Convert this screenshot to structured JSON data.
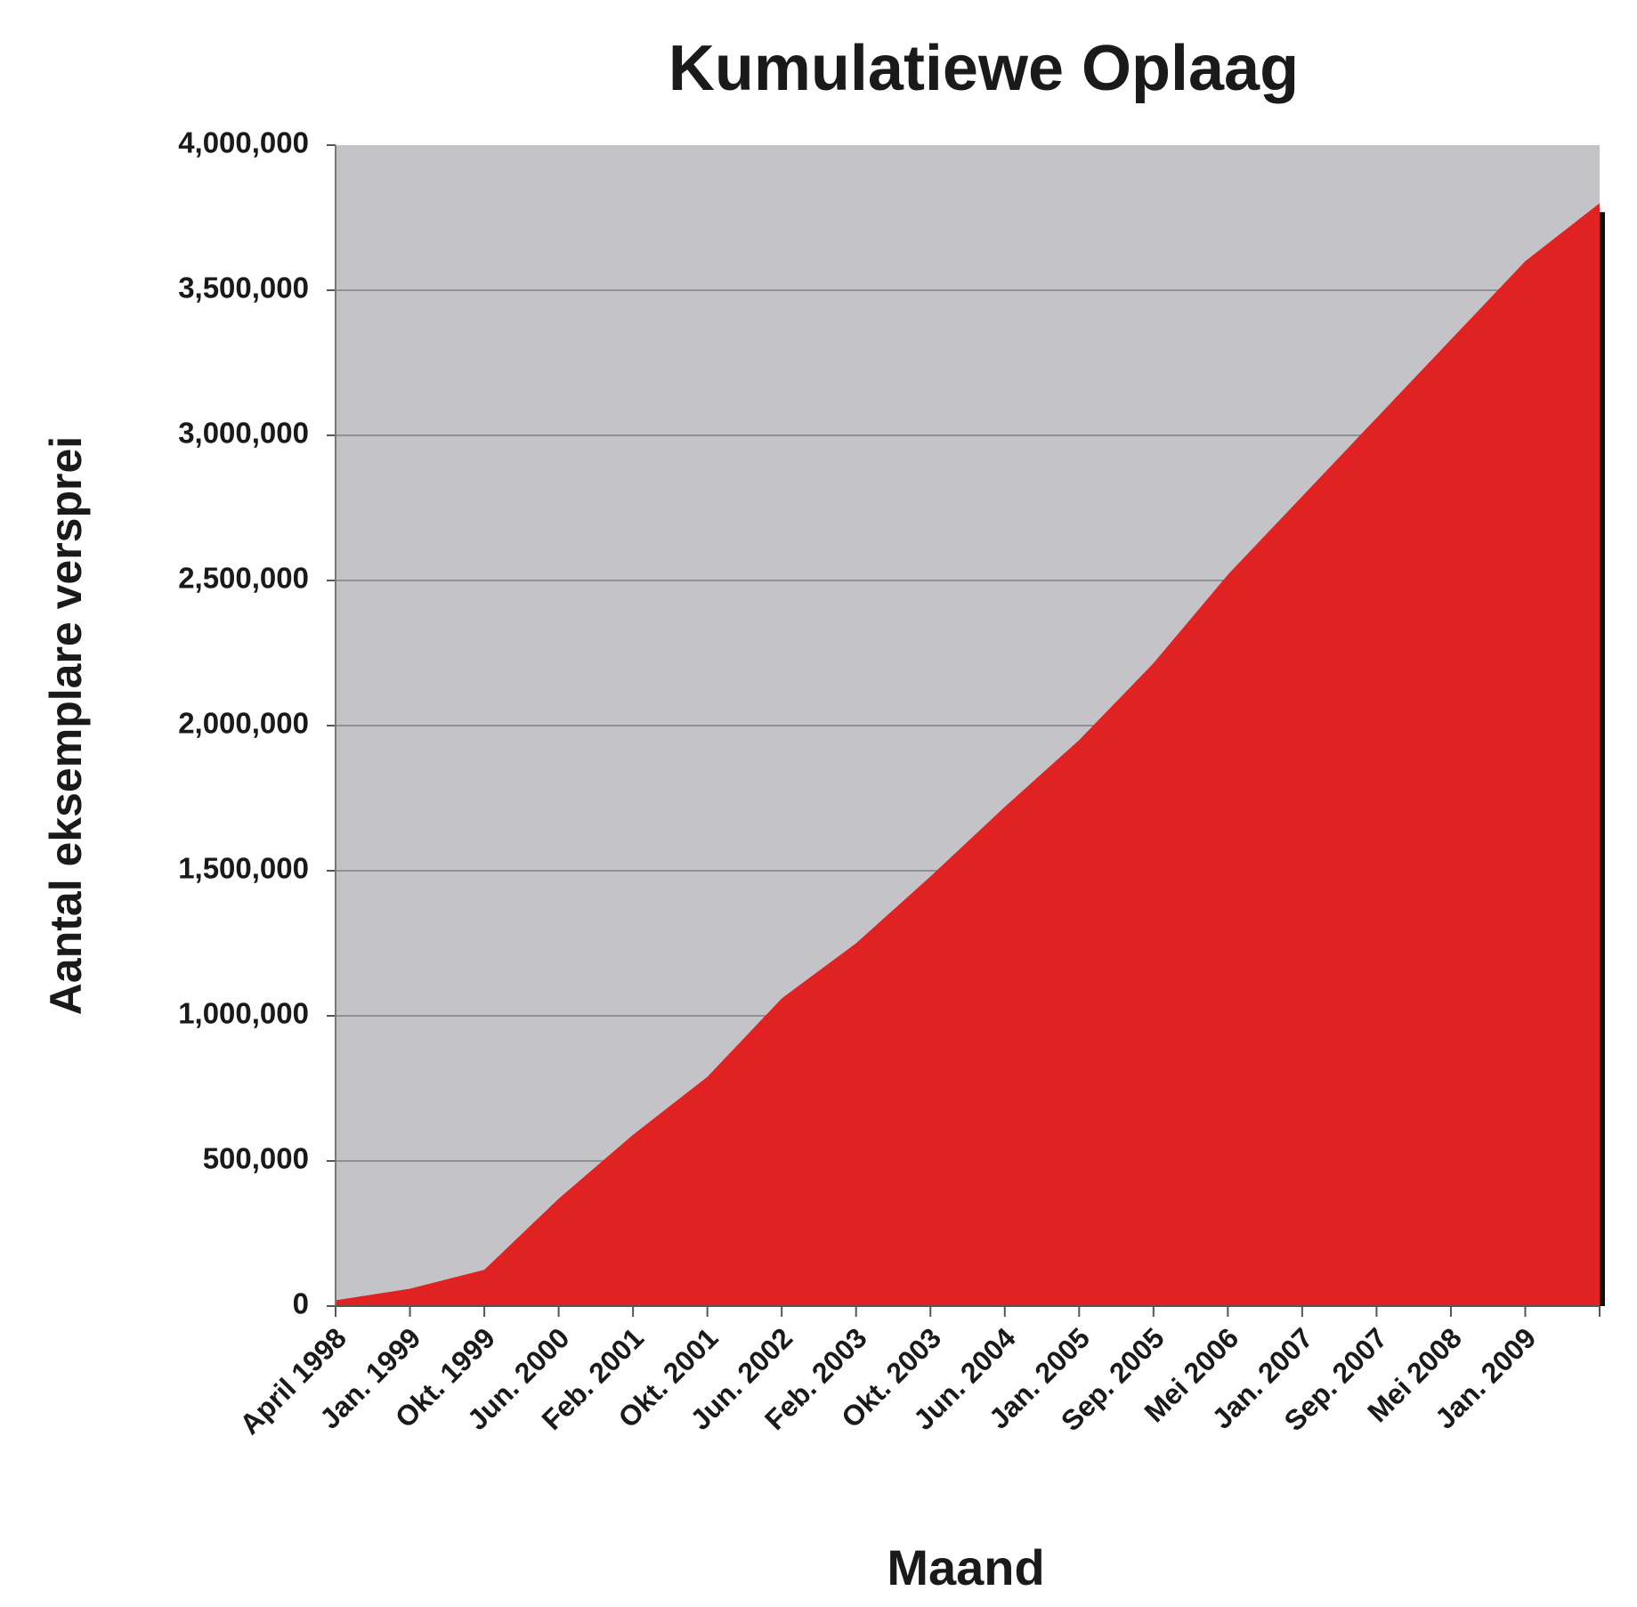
{
  "chart_data": {
    "type": "area",
    "title": "Kumulatiewe Oplaag",
    "x_label": "Maand",
    "y_label": "Aantal eksemplare versprei",
    "categories": [
      "April 1998",
      "Jan. 1999",
      "Okt. 1999",
      "Jun. 2000",
      "Feb. 2001",
      "Okt. 2001",
      "Jun. 2002",
      "Feb. 2003",
      "Okt. 2003",
      "Jun. 2004",
      "Jan. 2005",
      "Sep. 2005",
      "Mei 2006",
      "Jan. 2007",
      "Sep. 2007",
      "Mei 2008",
      "Jan. 2009",
      null
    ],
    "values": [
      20000,
      60000,
      125000,
      370000,
      590000,
      790000,
      1060000,
      1250000,
      1480000,
      1720000,
      1950000,
      2215000,
      2520000,
      2790000,
      3060000,
      3330000,
      3600000,
      3800000
    ],
    "color": "#e02222",
    "ylim": [
      0,
      4000000
    ],
    "yticks": [
      0,
      {
        "value": 500000,
        "label": "500,000"
      },
      {
        "value": 1000000,
        "label": "1,000,000"
      },
      {
        "value": 1500000,
        "label": "1,500,000"
      },
      {
        "value": 2000000,
        "label": "2,000,000"
      },
      {
        "value": 2500000,
        "label": "2,500,000"
      },
      {
        "value": 3000000,
        "label": "3,000,000"
      },
      {
        "value": 3500000,
        "label": "3,500,000"
      },
      {
        "value": 4000000,
        "label": "4,000,000"
      }
    ],
    "grid": true
  }
}
